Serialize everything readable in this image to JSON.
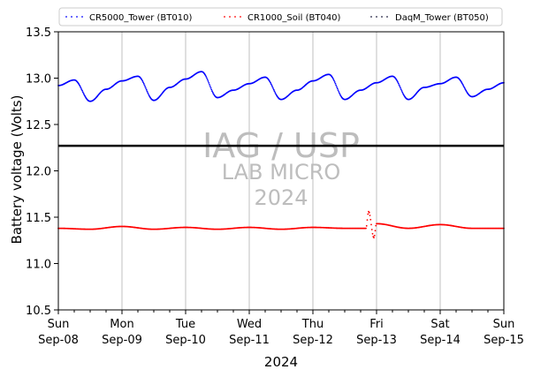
{
  "chart_data": {
    "type": "scatter",
    "xlabel": "2024",
    "ylabel": "Battery voltage (Volts)",
    "ylim": [
      10.5,
      13.5
    ],
    "y_ticks": [
      "10.5",
      "11.0",
      "11.5",
      "12.0",
      "12.5",
      "13.0",
      "13.5"
    ],
    "x_ticks": [
      {
        "day": "Sun",
        "date": "Sep-08"
      },
      {
        "day": "Mon",
        "date": "Sep-09"
      },
      {
        "day": "Tue",
        "date": "Sep-10"
      },
      {
        "day": "Wed",
        "date": "Sep-11"
      },
      {
        "day": "Thu",
        "date": "Sep-12"
      },
      {
        "day": "Fri",
        "date": "Sep-13"
      },
      {
        "day": "Sat",
        "date": "Sep-14"
      },
      {
        "day": "Sun",
        "date": "Sep-15"
      }
    ],
    "xlim": [
      "2024-09-08",
      "2024-09-15"
    ],
    "grid": "vertical",
    "legend_position": "top",
    "reference_line": 12.27,
    "watermark": [
      "IAG / USP",
      "LAB MICRO",
      "2024"
    ],
    "series": [
      {
        "name": "CR5000_Tower (BT010)",
        "color": "#0000ff",
        "points": [
          [
            "2024-09-08 00:00",
            12.92
          ],
          [
            "2024-09-08 06:00",
            12.98
          ],
          [
            "2024-09-08 12:00",
            12.75
          ],
          [
            "2024-09-08 18:00",
            12.88
          ],
          [
            "2024-09-09 00:00",
            12.97
          ],
          [
            "2024-09-09 06:00",
            13.02
          ],
          [
            "2024-09-09 12:00",
            12.76
          ],
          [
            "2024-09-09 18:00",
            12.9
          ],
          [
            "2024-09-10 00:00",
            12.99
          ],
          [
            "2024-09-10 06:00",
            13.07
          ],
          [
            "2024-09-10 12:00",
            12.79
          ],
          [
            "2024-09-10 18:00",
            12.87
          ],
          [
            "2024-09-11 00:00",
            12.94
          ],
          [
            "2024-09-11 06:00",
            13.01
          ],
          [
            "2024-09-11 12:00",
            12.77
          ],
          [
            "2024-09-11 18:00",
            12.87
          ],
          [
            "2024-09-12 00:00",
            12.97
          ],
          [
            "2024-09-12 06:00",
            13.04
          ],
          [
            "2024-09-12 12:00",
            12.77
          ],
          [
            "2024-09-12 18:00",
            12.87
          ],
          [
            "2024-09-13 00:00",
            12.95
          ],
          [
            "2024-09-13 06:00",
            13.02
          ],
          [
            "2024-09-13 12:00",
            12.77
          ],
          [
            "2024-09-13 18:00",
            12.9
          ],
          [
            "2024-09-14 00:00",
            12.94
          ],
          [
            "2024-09-14 06:00",
            13.01
          ],
          [
            "2024-09-14 12:00",
            12.8
          ],
          [
            "2024-09-14 18:00",
            12.88
          ],
          [
            "2024-09-15 00:00",
            12.95
          ]
        ]
      },
      {
        "name": "CR1000_Soil (BT040)",
        "color": "#ff0000",
        "points": [
          [
            "2024-09-08 00:00",
            11.38
          ],
          [
            "2024-09-08 12:00",
            11.37
          ],
          [
            "2024-09-09 00:00",
            11.4
          ],
          [
            "2024-09-09 12:00",
            11.37
          ],
          [
            "2024-09-10 00:00",
            11.39
          ],
          [
            "2024-09-10 12:00",
            11.37
          ],
          [
            "2024-09-11 00:00",
            11.39
          ],
          [
            "2024-09-11 12:00",
            11.37
          ],
          [
            "2024-09-12 00:00",
            11.39
          ],
          [
            "2024-09-12 12:00",
            11.38
          ],
          [
            "2024-09-12 20:00",
            11.38
          ],
          [
            "2024-09-12 21:00",
            11.56
          ],
          [
            "2024-09-12 23:00",
            11.28
          ],
          [
            "2024-09-13 00:00",
            11.43
          ],
          [
            "2024-09-13 12:00",
            11.38
          ],
          [
            "2024-09-14 00:00",
            11.42
          ],
          [
            "2024-09-14 12:00",
            11.38
          ],
          [
            "2024-09-15 00:00",
            11.38
          ]
        ]
      },
      {
        "name": "DaqM_Tower (BT050)",
        "color": "#1f1f3f",
        "points": []
      }
    ]
  }
}
